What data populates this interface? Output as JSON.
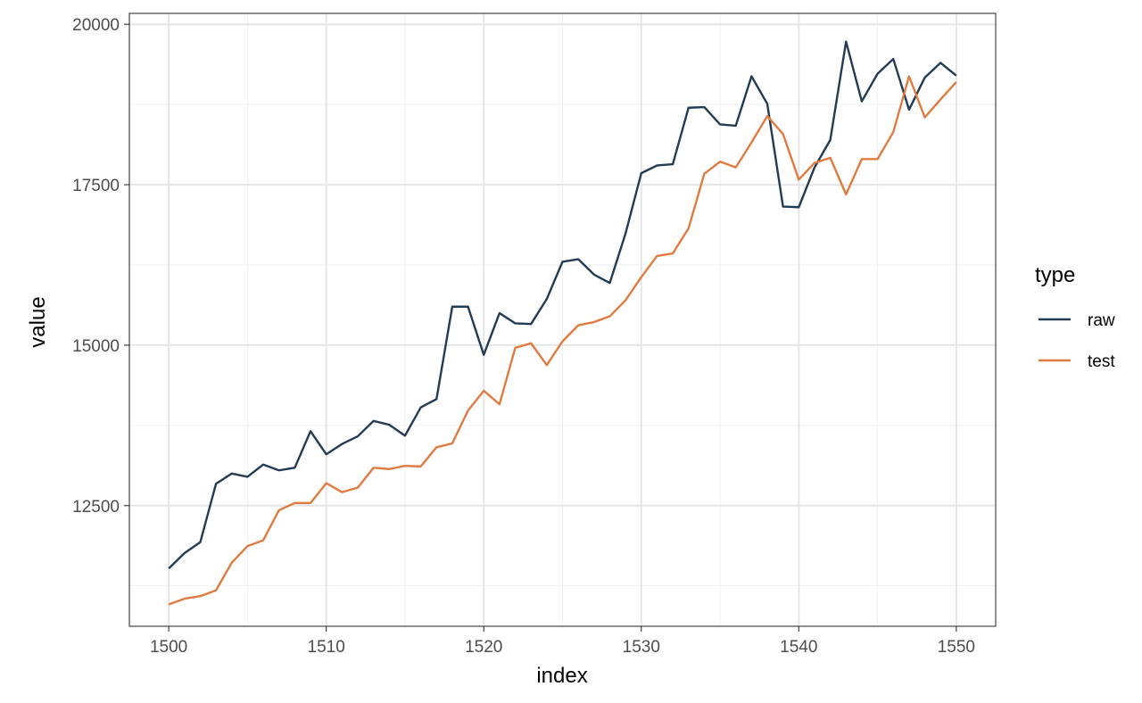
{
  "chart_data": {
    "type": "line",
    "title": "",
    "xlabel": "index",
    "ylabel": "value",
    "xlim": [
      1497.5,
      1552.5
    ],
    "ylim": [
      10620,
      20170
    ],
    "x_ticks": [
      1500,
      1510,
      1520,
      1530,
      1540,
      1550
    ],
    "y_ticks": [
      12500,
      15000,
      17500,
      20000
    ],
    "x_tick_labels": [
      "1500",
      "1510",
      "1520",
      "1530",
      "1540",
      "1550"
    ],
    "y_tick_labels": [
      "12500",
      "15000",
      "17500",
      "20000"
    ],
    "grid": true,
    "legend": {
      "title": "type",
      "position": "right"
    },
    "x": [
      1500,
      1501,
      1502,
      1503,
      1504,
      1505,
      1506,
      1507,
      1508,
      1509,
      1510,
      1511,
      1512,
      1513,
      1514,
      1515,
      1516,
      1517,
      1518,
      1519,
      1520,
      1521,
      1522,
      1523,
      1524,
      1525,
      1526,
      1527,
      1528,
      1529,
      1530,
      1531,
      1532,
      1533,
      1534,
      1535,
      1536,
      1537,
      1538,
      1539,
      1540,
      1541,
      1542,
      1543,
      1544,
      1545,
      1546,
      1547,
      1548,
      1549,
      1550
    ],
    "series": [
      {
        "name": "raw",
        "color": "#233c55",
        "values": [
          11520,
          11760,
          11930,
          12840,
          13000,
          12950,
          13140,
          13050,
          13090,
          13660,
          13300,
          13460,
          13580,
          13820,
          13760,
          13590,
          14030,
          14160,
          15600,
          15600,
          14850,
          15500,
          15340,
          15330,
          15720,
          16300,
          16340,
          16100,
          15970,
          16740,
          17680,
          17800,
          17820,
          18700,
          18710,
          18440,
          18420,
          19190,
          18760,
          17160,
          17150,
          17770,
          18200,
          19730,
          18800,
          19230,
          19460,
          18670,
          19170,
          19400,
          19200
        ]
      },
      {
        "name": "test",
        "color": "#e07b40",
        "values": [
          10960,
          11050,
          11090,
          11180,
          11610,
          11870,
          11960,
          12430,
          12540,
          12540,
          12850,
          12710,
          12780,
          13090,
          13070,
          13120,
          13110,
          13410,
          13470,
          13980,
          14290,
          14080,
          14960,
          15030,
          14690,
          15060,
          15310,
          15360,
          15450,
          15700,
          16060,
          16390,
          16430,
          16820,
          17670,
          17860,
          17770,
          18160,
          18570,
          18290,
          17580,
          17840,
          17920,
          17350,
          17900,
          17900,
          18320,
          19190,
          18550,
          18830,
          19100
        ]
      }
    ]
  }
}
